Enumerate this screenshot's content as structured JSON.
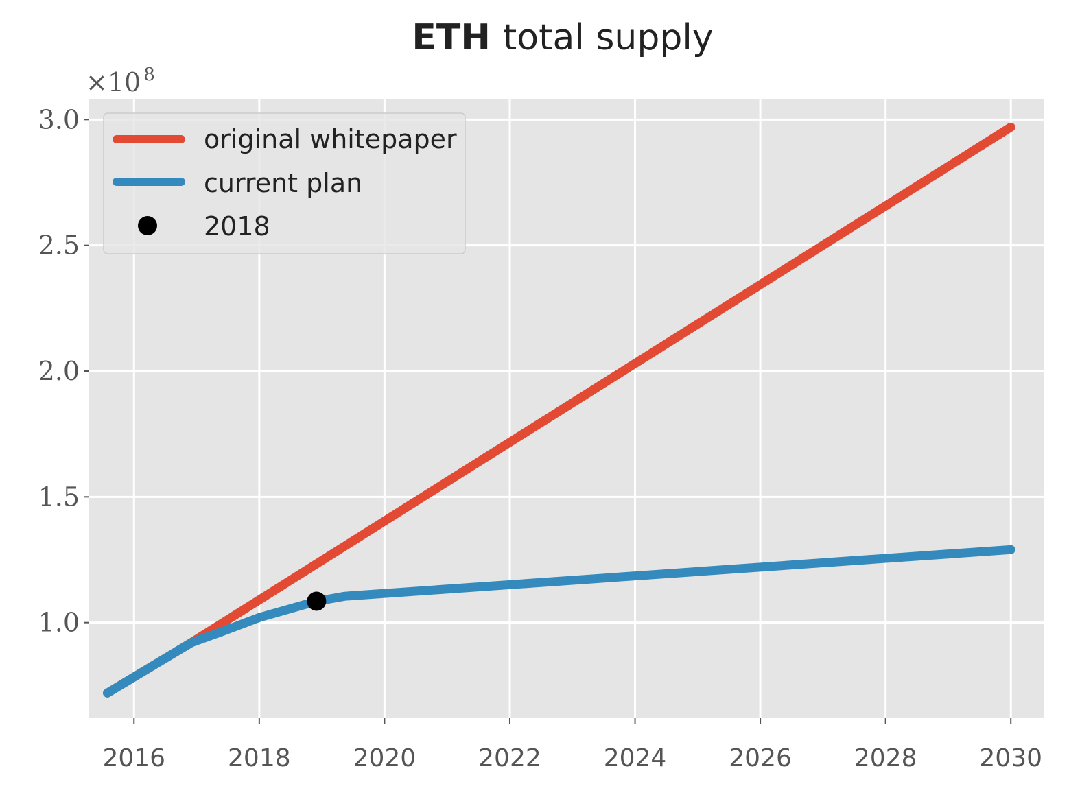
{
  "chart_data": {
    "type": "line",
    "title": {
      "bold": "ETH",
      "rest": "total supply"
    },
    "xlabel": "",
    "ylabel": "",
    "x_axis": {
      "type": "date",
      "ticks": [
        "2016",
        "2018",
        "2020",
        "2022",
        "2024",
        "2026",
        "2028",
        "2030"
      ],
      "range": [
        "2015-04-15",
        "2030-07-15"
      ]
    },
    "y_axis": {
      "scale_label": "×10",
      "scale_exponent": "8",
      "ticks": [
        "1.0",
        "1.5",
        "2.0",
        "2.5",
        "3.0"
      ],
      "tick_values": [
        1.0,
        1.5,
        2.0,
        2.5,
        3.0
      ],
      "range": [
        0.62,
        3.08
      ]
    },
    "grid": true,
    "legend_position": "top-left",
    "series": [
      {
        "name": "original whitepaper",
        "color": "#E24A33",
        "points": [
          {
            "x": "2015-07-30",
            "y": 0.72
          },
          {
            "x": "2016-11-30",
            "y": 0.92
          },
          {
            "x": "2030-01-01",
            "y": 2.97
          }
        ]
      },
      {
        "name": "current plan",
        "color": "#348ABD",
        "points": [
          {
            "x": "2015-07-30",
            "y": 0.72
          },
          {
            "x": "2016-11-30",
            "y": 0.92
          },
          {
            "x": "2017-06-01",
            "y": 0.965
          },
          {
            "x": "2018-01-01",
            "y": 1.02
          },
          {
            "x": "2018-12-01",
            "y": 1.085
          },
          {
            "x": "2019-05-15",
            "y": 1.105
          },
          {
            "x": "2030-01-01",
            "y": 1.29
          }
        ]
      }
    ],
    "markers": [
      {
        "name": "2018",
        "color": "#000000",
        "x": "2018-12-01",
        "y": 1.085
      }
    ]
  }
}
